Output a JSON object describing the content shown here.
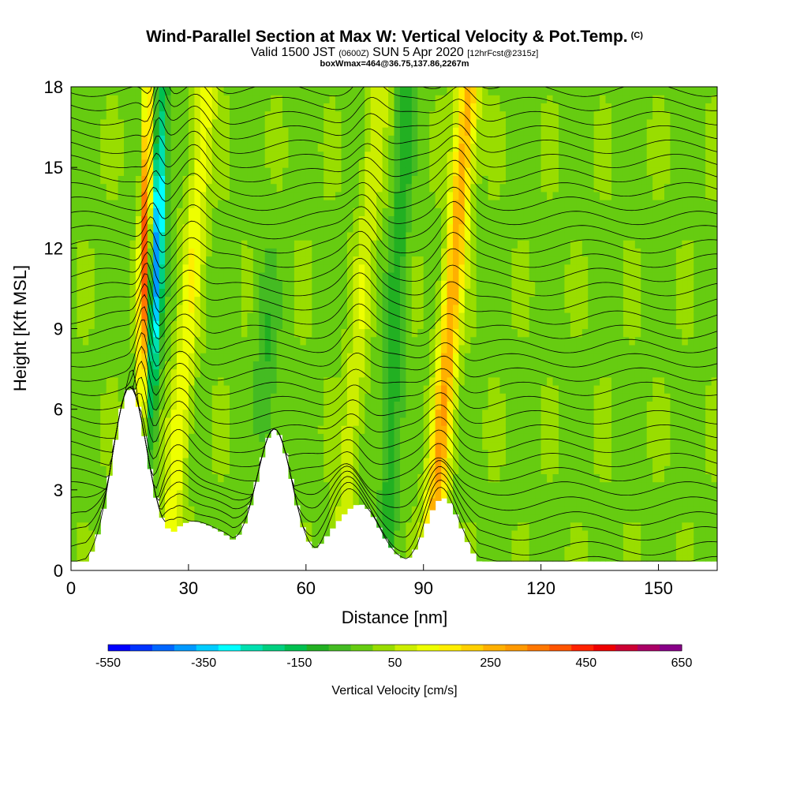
{
  "header": {
    "title": "Wind-Parallel Section at Max W: Vertical Velocity & Pot.Temp.",
    "copyright": "(C)",
    "subtitle_a": "Valid 1500 JST",
    "subtitle_b": "(0600Z)",
    "subtitle_c": "SUN 5 Apr 2020",
    "subtitle_d": "[12hrFcst@2315z]",
    "subtitle2": "boxWmax=464@36.75,137.86,2267m"
  },
  "chart_data": {
    "type": "heatmap",
    "title": "Wind-Parallel Section at Max W: Vertical Velocity & Pot.Temp.",
    "xlabel": "Distance [nm]",
    "ylabel": "Height [Kft MSL]",
    "xlim": [
      0,
      165
    ],
    "ylim": [
      0,
      18
    ],
    "xticks": [
      0,
      30,
      60,
      90,
      120,
      150
    ],
    "yticks": [
      0,
      3,
      6,
      9,
      12,
      15,
      18
    ],
    "colorbar": {
      "title": "Vertical Velocity [cm/s]",
      "labels": [
        "-550",
        "-350",
        "-150",
        "50",
        "250",
        "450",
        "650"
      ],
      "min": -550,
      "max": 650,
      "step": 50,
      "colors": [
        "#0000ff",
        "#0033ff",
        "#0066ff",
        "#0099ff",
        "#00ccff",
        "#00ffff",
        "#00e0b0",
        "#00d080",
        "#00c050",
        "#22b022",
        "#44bb22",
        "#66cc11",
        "#99dd00",
        "#ccee00",
        "#eeff00",
        "#ffee00",
        "#ffd000",
        "#ffb000",
        "#ff9900",
        "#ff7700",
        "#ff5500",
        "#ff2200",
        "#ee0000",
        "#cc0033",
        "#aa0066",
        "#880088"
      ]
    },
    "updraft_cores": [
      {
        "x": 18,
        "w_max": 464
      },
      {
        "x": 28,
        "w_max": 150
      },
      {
        "x": 72,
        "w_max": 100
      },
      {
        "x": 95,
        "w_max": 300
      }
    ],
    "terrain_peaks_kft": [
      {
        "x": 15,
        "height": 6.8
      },
      {
        "x": 52,
        "height": 5.2
      },
      {
        "x": 95,
        "height": 2.7
      }
    ]
  }
}
